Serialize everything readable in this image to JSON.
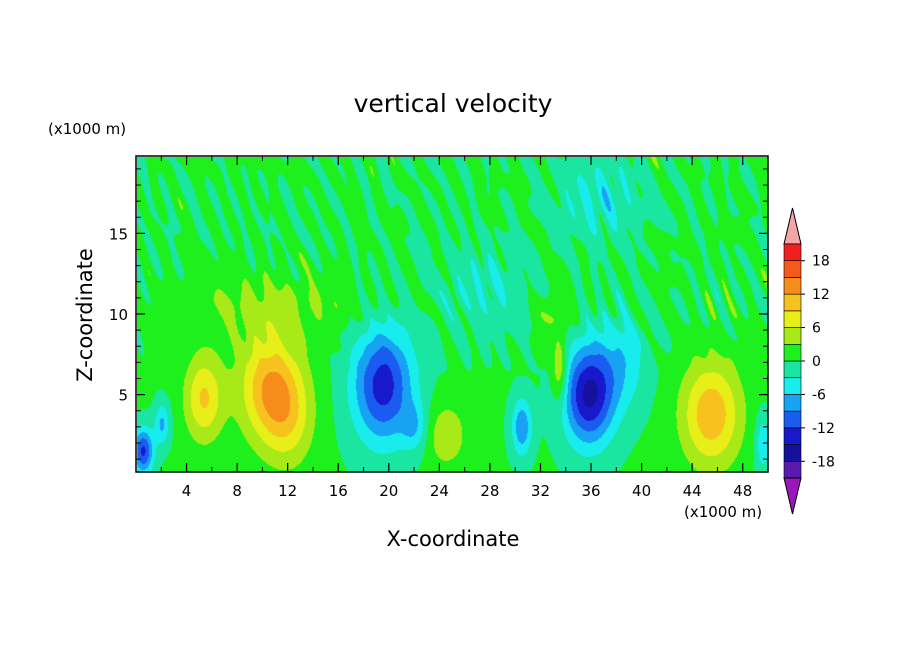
{
  "chart_data": {
    "type": "heatmap",
    "title": "vertical velocity",
    "xlabel": "X-coordinate",
    "ylabel": "Z-coordinate",
    "x_unit": "(x1000 m)",
    "y_unit": "(x1000 m)",
    "xlim": [
      0,
      50
    ],
    "ylim": [
      0.2,
      19.8
    ],
    "x_ticks": [
      4,
      8,
      12,
      16,
      20,
      24,
      28,
      32,
      36,
      40,
      44,
      48
    ],
    "y_ticks": [
      5,
      10,
      15
    ],
    "x_tick_labels": [
      "4",
      "8",
      "12",
      "16",
      "20",
      "24",
      "28",
      "32",
      "36",
      "40",
      "44",
      "48"
    ],
    "y_tick_labels": [
      "5",
      "10",
      "15"
    ],
    "colorbar": {
      "levels": [
        -21,
        -18,
        -15,
        -12,
        -9,
        -6,
        -3,
        0,
        3,
        6,
        9,
        12,
        15,
        18,
        21
      ],
      "tick_values": [
        -18,
        -12,
        -6,
        0,
        6,
        12,
        18
      ],
      "tick_labels": [
        "-18",
        "-12",
        "-6",
        "0",
        "6",
        "12",
        "18"
      ],
      "colors": [
        "#9a18b8",
        "#5a1ab0",
        "#16109a",
        "#1818cc",
        "#1a5cf0",
        "#18a2f4",
        "#18ecec",
        "#1ae6a2",
        "#1ef01e",
        "#a8ea18",
        "#e8ee18",
        "#f8c21e",
        "#f68c1c",
        "#f45a1a",
        "#ee2020",
        "#f4a6a6"
      ],
      "extend": "both"
    },
    "features": [
      {
        "x": 0.5,
        "z": 1.5,
        "w": -13,
        "rx": 0.8,
        "rz": 1.4
      },
      {
        "x": 2.0,
        "z": 3.2,
        "w": -7,
        "rx": 0.6,
        "rz": 1.3
      },
      {
        "x": 5.3,
        "z": 4.8,
        "w": 9,
        "rx": 1.5,
        "rz": 2.6
      },
      {
        "x": 10.5,
        "z": 5.5,
        "w": 11,
        "rx": 2.4,
        "rz": 3.3
      },
      {
        "x": 12.0,
        "z": 3.5,
        "w": 6,
        "rx": 2.0,
        "rz": 3.0
      },
      {
        "x": 19.5,
        "z": 5.6,
        "w": -14,
        "rx": 2.4,
        "rz": 3.6
      },
      {
        "x": 22.0,
        "z": 3.0,
        "w": -5,
        "rx": 1.0,
        "rz": 1.5
      },
      {
        "x": 24.5,
        "z": 2.5,
        "w": 5,
        "rx": 1.6,
        "rz": 2.0
      },
      {
        "x": 30.5,
        "z": 3.0,
        "w": -9,
        "rx": 0.8,
        "rz": 1.8
      },
      {
        "x": 33.5,
        "z": 6.5,
        "w": 7,
        "rx": 0.6,
        "rz": 2.0
      },
      {
        "x": 35.8,
        "z": 5.0,
        "w": -16,
        "rx": 2.0,
        "rz": 3.1
      },
      {
        "x": 38.5,
        "z": 7.0,
        "w": -5,
        "rx": 2.0,
        "rz": 3.0
      },
      {
        "x": 45.5,
        "z": 3.8,
        "w": 11,
        "rx": 2.3,
        "rz": 3.2
      },
      {
        "x": 49.6,
        "z": 2.0,
        "w": -6,
        "rx": 0.6,
        "rz": 1.8
      },
      {
        "x": 10.0,
        "z": 10.5,
        "w": 3,
        "rx": 8.0,
        "rz": 2.0
      },
      {
        "x": 33.0,
        "z": 10.0,
        "w": 3,
        "rx": 1.5,
        "rz": 1.5
      },
      {
        "x": 36.5,
        "z": 17.2,
        "w": -4,
        "rx": 3.5,
        "rz": 2.6
      },
      {
        "x": 27.5,
        "z": 11.5,
        "w": -3,
        "rx": 4.0,
        "rz": 3.0
      }
    ]
  }
}
